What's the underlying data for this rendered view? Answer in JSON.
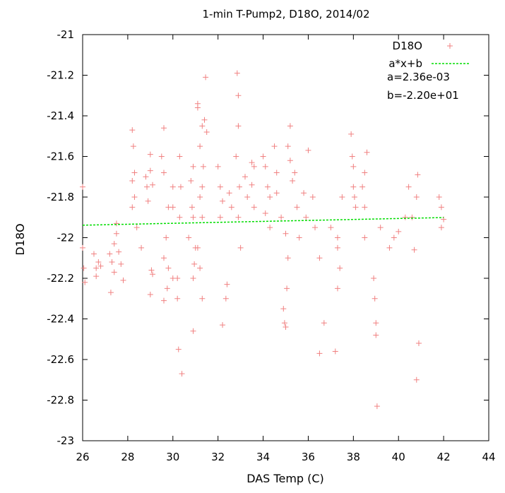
{
  "chart_data": {
    "type": "scatter",
    "title": "1-min T-Pump2, D18O, 2014/02",
    "xlabel": "DAS Temp (C)",
    "ylabel": "D18O",
    "xlim": [
      26,
      44
    ],
    "ylim": [
      -23,
      -21
    ],
    "xticks": [
      "26",
      "28",
      "30",
      "32",
      "34",
      "36",
      "38",
      "40",
      "42",
      "44"
    ],
    "yticks": [
      "-21",
      "-21.2",
      "-21.4",
      "-21.6",
      "-21.8",
      "-22",
      "-22.2",
      "-22.4",
      "-22.6",
      "-22.8",
      "-23"
    ],
    "grid": false,
    "legend_position": "top-right",
    "series": [
      {
        "name": "D18O",
        "style": "plus-markers",
        "color": "#f08080",
        "points": [
          [
            26.0,
            -21.75
          ],
          [
            26.0,
            -22.05
          ],
          [
            26.05,
            -22.15
          ],
          [
            26.1,
            -22.22
          ],
          [
            26.5,
            -22.08
          ],
          [
            26.6,
            -22.15
          ],
          [
            26.7,
            -22.12
          ],
          [
            26.6,
            -22.19
          ],
          [
            26.8,
            -22.14
          ],
          [
            27.2,
            -22.08
          ],
          [
            27.3,
            -22.12
          ],
          [
            27.25,
            -22.27
          ],
          [
            27.4,
            -22.17
          ],
          [
            27.5,
            -21.98
          ],
          [
            27.5,
            -21.93
          ],
          [
            27.4,
            -22.03
          ],
          [
            27.7,
            -22.13
          ],
          [
            27.8,
            -22.21
          ],
          [
            27.6,
            -22.07
          ],
          [
            28.2,
            -21.47
          ],
          [
            28.25,
            -21.55
          ],
          [
            28.3,
            -21.68
          ],
          [
            28.2,
            -21.72
          ],
          [
            28.3,
            -21.8
          ],
          [
            28.2,
            -21.85
          ],
          [
            28.4,
            -21.95
          ],
          [
            28.6,
            -22.05
          ],
          [
            28.8,
            -21.7
          ],
          [
            28.85,
            -21.75
          ],
          [
            28.9,
            -21.82
          ],
          [
            29.0,
            -21.59
          ],
          [
            29.0,
            -21.67
          ],
          [
            29.1,
            -21.74
          ],
          [
            29.05,
            -22.16
          ],
          [
            29.1,
            -22.18
          ],
          [
            29.0,
            -22.28
          ],
          [
            29.6,
            -21.46
          ],
          [
            29.5,
            -21.6
          ],
          [
            29.6,
            -21.68
          ],
          [
            29.8,
            -21.85
          ],
          [
            29.7,
            -22.0
          ],
          [
            29.6,
            -22.1
          ],
          [
            29.8,
            -22.15
          ],
          [
            29.75,
            -22.25
          ],
          [
            29.6,
            -22.31
          ],
          [
            30.0,
            -21.75
          ],
          [
            30.0,
            -21.85
          ],
          [
            30.0,
            -22.2
          ],
          [
            30.3,
            -21.6
          ],
          [
            30.35,
            -21.75
          ],
          [
            30.3,
            -21.9
          ],
          [
            30.2,
            -22.2
          ],
          [
            30.2,
            -22.3
          ],
          [
            30.25,
            -22.55
          ],
          [
            30.4,
            -22.67
          ],
          [
            30.9,
            -21.65
          ],
          [
            30.8,
            -21.72
          ],
          [
            30.85,
            -21.85
          ],
          [
            30.9,
            -21.9
          ],
          [
            30.7,
            -22.0
          ],
          [
            31.0,
            -22.05
          ],
          [
            30.95,
            -22.13
          ],
          [
            30.9,
            -22.2
          ],
          [
            30.9,
            -22.46
          ],
          [
            31.1,
            -21.34
          ],
          [
            31.1,
            -21.36
          ],
          [
            31.3,
            -21.45
          ],
          [
            31.2,
            -21.55
          ],
          [
            31.35,
            -21.65
          ],
          [
            31.3,
            -21.75
          ],
          [
            31.2,
            -21.8
          ],
          [
            31.3,
            -21.9
          ],
          [
            31.1,
            -22.05
          ],
          [
            31.2,
            -22.15
          ],
          [
            31.3,
            -22.3
          ],
          [
            31.45,
            -21.21
          ],
          [
            31.4,
            -21.42
          ],
          [
            31.5,
            -21.48
          ],
          [
            32.0,
            -21.65
          ],
          [
            32.1,
            -21.75
          ],
          [
            32.2,
            -21.82
          ],
          [
            32.1,
            -21.9
          ],
          [
            32.2,
            -22.43
          ],
          [
            32.4,
            -22.23
          ],
          [
            32.35,
            -22.3
          ],
          [
            32.5,
            -21.78
          ],
          [
            32.6,
            -21.85
          ],
          [
            32.8,
            -21.6
          ],
          [
            32.85,
            -21.19
          ],
          [
            32.9,
            -21.3
          ],
          [
            32.9,
            -21.45
          ],
          [
            32.95,
            -21.75
          ],
          [
            32.9,
            -21.9
          ],
          [
            33.0,
            -22.05
          ],
          [
            33.2,
            -21.7
          ],
          [
            33.3,
            -21.8
          ],
          [
            33.5,
            -21.63
          ],
          [
            33.6,
            -21.65
          ],
          [
            33.5,
            -21.74
          ],
          [
            33.6,
            -21.85
          ],
          [
            34.0,
            -21.6
          ],
          [
            34.1,
            -21.65
          ],
          [
            34.2,
            -21.75
          ],
          [
            34.3,
            -21.8
          ],
          [
            34.1,
            -21.88
          ],
          [
            34.3,
            -21.95
          ],
          [
            34.5,
            -21.55
          ],
          [
            34.6,
            -21.68
          ],
          [
            34.6,
            -21.78
          ],
          [
            34.8,
            -21.9
          ],
          [
            35.0,
            -21.98
          ],
          [
            35.1,
            -21.55
          ],
          [
            35.2,
            -21.45
          ],
          [
            35.2,
            -21.62
          ],
          [
            35.3,
            -21.72
          ],
          [
            35.1,
            -22.1
          ],
          [
            35.05,
            -22.25
          ],
          [
            34.9,
            -22.35
          ],
          [
            34.95,
            -22.42
          ],
          [
            35.0,
            -22.44
          ],
          [
            35.4,
            -21.68
          ],
          [
            35.5,
            -21.85
          ],
          [
            35.6,
            -22.0
          ],
          [
            35.8,
            -21.78
          ],
          [
            35.9,
            -21.9
          ],
          [
            36.0,
            -21.57
          ],
          [
            36.2,
            -21.8
          ],
          [
            36.3,
            -21.95
          ],
          [
            36.5,
            -22.1
          ],
          [
            36.5,
            -22.57
          ],
          [
            36.7,
            -22.42
          ],
          [
            37.0,
            -21.95
          ],
          [
            37.3,
            -22.0
          ],
          [
            37.5,
            -21.8
          ],
          [
            37.3,
            -22.05
          ],
          [
            37.4,
            -22.15
          ],
          [
            37.3,
            -22.25
          ],
          [
            37.2,
            -22.56
          ],
          [
            37.9,
            -21.49
          ],
          [
            37.95,
            -21.6
          ],
          [
            38.0,
            -21.65
          ],
          [
            38.0,
            -21.75
          ],
          [
            38.05,
            -21.8
          ],
          [
            38.1,
            -21.85
          ],
          [
            38.4,
            -21.75
          ],
          [
            38.5,
            -21.68
          ],
          [
            38.6,
            -21.58
          ],
          [
            38.5,
            -21.85
          ],
          [
            38.5,
            -22.0
          ],
          [
            38.9,
            -22.2
          ],
          [
            38.95,
            -22.3
          ],
          [
            39.0,
            -22.42
          ],
          [
            39.0,
            -22.48
          ],
          [
            39.05,
            -22.83
          ],
          [
            39.6,
            -22.05
          ],
          [
            39.8,
            -22.0
          ],
          [
            39.2,
            -21.95
          ],
          [
            40.0,
            -21.97
          ],
          [
            40.3,
            -21.9
          ],
          [
            40.45,
            -21.75
          ],
          [
            40.6,
            -21.9
          ],
          [
            40.7,
            -22.06
          ],
          [
            40.85,
            -21.69
          ],
          [
            40.8,
            -21.8
          ],
          [
            40.9,
            -22.52
          ],
          [
            40.8,
            -22.7
          ],
          [
            41.8,
            -21.8
          ],
          [
            41.9,
            -21.85
          ],
          [
            41.9,
            -21.95
          ],
          [
            42.0,
            -21.91
          ]
        ]
      },
      {
        "name": "a*x+b",
        "style": "dashed-line",
        "color": "#00dd00",
        "x": [
          26,
          42
        ],
        "y": [
          -21.9386,
          -21.9009
        ]
      }
    ],
    "annotations": [
      "a=2.36e-03",
      "b=-2.20e+01"
    ]
  }
}
